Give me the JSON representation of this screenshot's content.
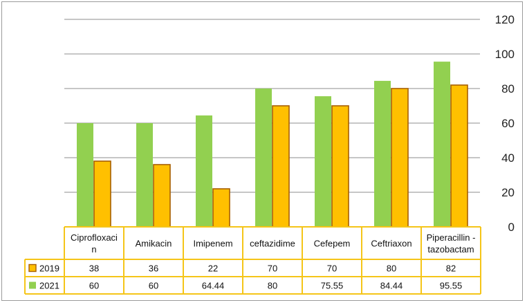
{
  "chart_data": {
    "type": "bar",
    "categories": [
      "Ciprofloxacin",
      "Amikacin",
      "Imipenem",
      "ceftazidime",
      "Cefepem",
      "Ceftriaxon",
      "Piperacillin - tazobactam"
    ],
    "category_label_lines": [
      [
        "Ciprofloxaci",
        "n"
      ],
      [
        "Amikacin"
      ],
      [
        "Imipenem"
      ],
      [
        "ceftazidime"
      ],
      [
        "Cefepem"
      ],
      [
        "Ceftriaxon"
      ],
      [
        "Piperacillin -",
        "tazobactam"
      ]
    ],
    "series": [
      {
        "name": "2019",
        "values": [
          38,
          36,
          22,
          70,
          70,
          80,
          82
        ],
        "value_labels": [
          "38",
          "36",
          "22",
          "70",
          "70",
          "80",
          "82"
        ],
        "color": "#FFC000",
        "stroke": "#A65E00"
      },
      {
        "name": "2021",
        "values": [
          60,
          60,
          64.44,
          80,
          75.55,
          84.44,
          95.55
        ],
        "value_labels": [
          "60",
          "60",
          "64.44",
          "80",
          "75.55",
          "84.44",
          "95.55"
        ],
        "color": "#92D050",
        "stroke": "#92D050"
      }
    ],
    "draw_order": [
      "2021",
      "2019"
    ],
    "ylim": [
      0,
      120
    ],
    "yticks": [
      0,
      20,
      40,
      60,
      80,
      100,
      120
    ],
    "y_axis_side": "right",
    "grid": true,
    "legend": "data-table",
    "title": "",
    "xlabel": "",
    "ylabel": ""
  }
}
